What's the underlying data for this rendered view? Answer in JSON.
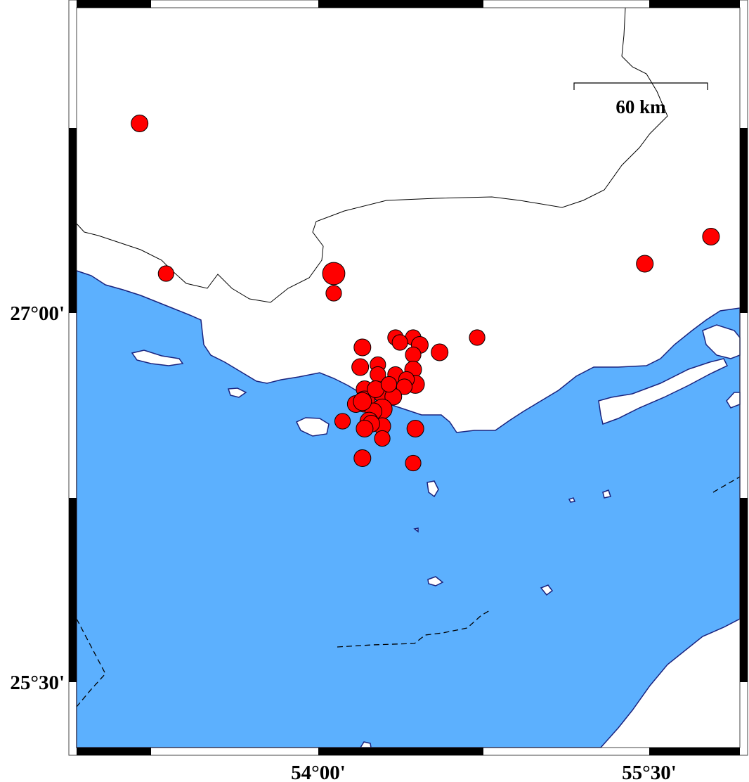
{
  "map": {
    "projection": "mercator",
    "region": {
      "lon_min": 53.0,
      "lon_max": 56.0,
      "lat_min": 25.25,
      "lat_max": 27.95
    },
    "colors": {
      "sea": "#5cb0fe",
      "land": "#ffffff",
      "coastline": "#1a237e",
      "event_fill": "#ff0000",
      "event_stroke": "#000000",
      "boundary": "#000000"
    },
    "x_ticks": [
      {
        "value": 54.0,
        "label": "54°00'"
      },
      {
        "value": 55.5,
        "label": "55°30'"
      }
    ],
    "y_ticks": [
      {
        "value": 27.0,
        "label": "27°00'"
      },
      {
        "value": 25.5,
        "label": "25°30'"
      }
    ],
    "scale_bar": {
      "length_km": 60,
      "label": "60 km"
    },
    "frame": "fancy-checkered"
  },
  "chart_data": {
    "type": "scatter",
    "x_label": "",
    "y_label": "",
    "xlim": [
      53.0,
      56.0
    ],
    "ylim": [
      25.25,
      27.95
    ],
    "marker": "circle",
    "marker_size_meaning": "event size",
    "events": [
      {
        "lon": 53.19,
        "lat": 27.77,
        "size": 4.0
      },
      {
        "lon": 53.31,
        "lat": 27.16,
        "size": 3.7
      },
      {
        "lon": 54.07,
        "lat": 27.16,
        "size": 5.3
      },
      {
        "lon": 54.07,
        "lat": 27.08,
        "size": 3.7
      },
      {
        "lon": 55.48,
        "lat": 27.2,
        "size": 4.0
      },
      {
        "lon": 55.78,
        "lat": 27.31,
        "size": 4.0
      },
      {
        "lon": 54.72,
        "lat": 26.9,
        "size": 3.7
      },
      {
        "lon": 54.55,
        "lat": 26.84,
        "size": 4.0
      },
      {
        "lon": 54.35,
        "lat": 26.9,
        "size": 3.7
      },
      {
        "lon": 54.43,
        "lat": 26.9,
        "size": 3.7
      },
      {
        "lon": 54.37,
        "lat": 26.88,
        "size": 3.7
      },
      {
        "lon": 54.46,
        "lat": 26.87,
        "size": 4.0
      },
      {
        "lon": 54.2,
        "lat": 26.86,
        "size": 4.0
      },
      {
        "lon": 54.19,
        "lat": 26.78,
        "size": 4.0
      },
      {
        "lon": 54.27,
        "lat": 26.79,
        "size": 3.7
      },
      {
        "lon": 54.27,
        "lat": 26.75,
        "size": 3.7
      },
      {
        "lon": 54.43,
        "lat": 26.83,
        "size": 3.7
      },
      {
        "lon": 54.35,
        "lat": 26.75,
        "size": 3.7
      },
      {
        "lon": 54.43,
        "lat": 26.77,
        "size": 4.0
      },
      {
        "lon": 54.44,
        "lat": 26.71,
        "size": 4.3
      },
      {
        "lon": 54.4,
        "lat": 26.73,
        "size": 3.7
      },
      {
        "lon": 54.39,
        "lat": 26.7,
        "size": 3.7
      },
      {
        "lon": 54.21,
        "lat": 26.69,
        "size": 4.0
      },
      {
        "lon": 54.21,
        "lat": 26.64,
        "size": 5.0
      },
      {
        "lon": 54.29,
        "lat": 26.67,
        "size": 4.0
      },
      {
        "lon": 54.34,
        "lat": 26.66,
        "size": 4.0
      },
      {
        "lon": 54.29,
        "lat": 26.61,
        "size": 4.7
      },
      {
        "lon": 54.25,
        "lat": 26.6,
        "size": 4.0
      },
      {
        "lon": 54.17,
        "lat": 26.63,
        "size": 4.0
      },
      {
        "lon": 54.23,
        "lat": 26.56,
        "size": 4.3
      },
      {
        "lon": 54.29,
        "lat": 26.54,
        "size": 4.0
      },
      {
        "lon": 54.24,
        "lat": 26.55,
        "size": 4.0
      },
      {
        "lon": 54.11,
        "lat": 26.56,
        "size": 3.7
      },
      {
        "lon": 54.21,
        "lat": 26.53,
        "size": 4.0
      },
      {
        "lon": 54.29,
        "lat": 26.49,
        "size": 3.7
      },
      {
        "lon": 54.44,
        "lat": 26.53,
        "size": 4.0
      },
      {
        "lon": 54.2,
        "lat": 26.41,
        "size": 4.0
      },
      {
        "lon": 54.43,
        "lat": 26.39,
        "size": 3.7
      },
      {
        "lon": 54.2,
        "lat": 26.64,
        "size": 4.3
      },
      {
        "lon": 54.26,
        "lat": 26.69,
        "size": 4.0
      },
      {
        "lon": 54.32,
        "lat": 26.71,
        "size": 3.7
      }
    ]
  }
}
